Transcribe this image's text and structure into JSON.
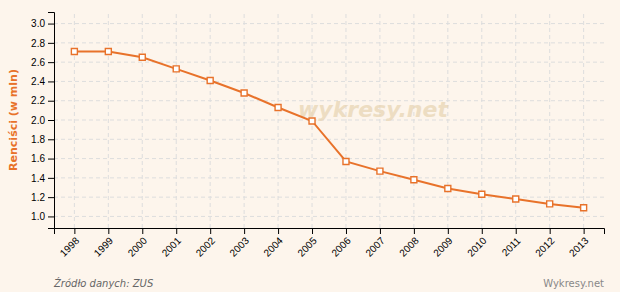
{
  "chart_data": {
    "type": "line",
    "ylabel": "Renciści (w mln)",
    "annotations": [
      "wykresy.net",
      "Źródło danych: ZUS",
      "Wykresy.net"
    ],
    "x": [
      1998,
      1999,
      2000,
      2001,
      2002,
      2003,
      2004,
      2005,
      2006,
      2007,
      2008,
      2009,
      2010,
      2011,
      2012,
      2013
    ],
    "values": [
      2.71,
      2.71,
      2.65,
      2.53,
      2.41,
      2.28,
      2.13,
      1.99,
      1.57,
      1.47,
      1.38,
      1.29,
      1.23,
      1.18,
      1.13,
      1.09
    ],
    "color": "#E8722A",
    "marker": "square",
    "grid": true,
    "xlim": [
      1997.4,
      2013.6
    ],
    "xticks": [
      1998,
      1999,
      2000,
      2001,
      2002,
      2003,
      2004,
      2005,
      2006,
      2007,
      2008,
      2009,
      2010,
      2011,
      2012,
      2013
    ],
    "ylim": [
      0.88,
      3.12
    ],
    "yticks": [
      {
        "value": 1.0,
        "label": "1.0"
      },
      1.2,
      1.4,
      1.6,
      1.8,
      {
        "value": 2.0,
        "label": "2.0"
      },
      2.2,
      2.4,
      2.6,
      2.8,
      {
        "value": 3.0,
        "label": "3.0"
      }
    ]
  }
}
